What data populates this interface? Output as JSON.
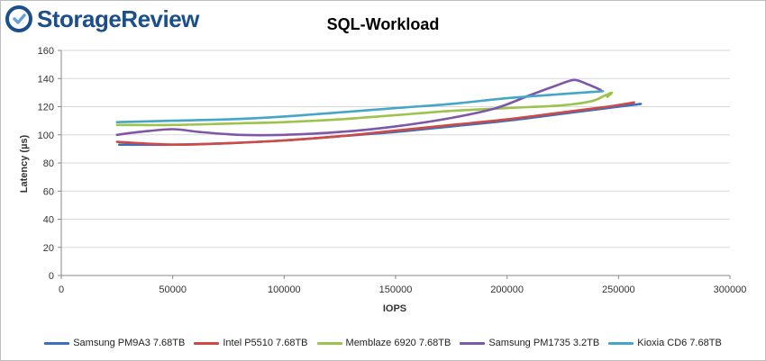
{
  "brand": {
    "name": "StorageReview",
    "logo_color": "#1a4f8b"
  },
  "chart_data": {
    "type": "line",
    "title": "SQL-Workload",
    "xlabel": "IOPS",
    "ylabel": "Latency (µs)",
    "xlim": [
      0,
      300000
    ],
    "ylim": [
      0,
      160
    ],
    "xticks": [
      0,
      50000,
      100000,
      150000,
      200000,
      250000,
      300000
    ],
    "yticks": [
      0,
      20,
      40,
      60,
      80,
      100,
      120,
      140,
      160
    ],
    "grid": "horizontal",
    "legend_position": "bottom",
    "series": [
      {
        "name": "Samsung PM9A3 7.68TB",
        "color": "#3d6ec0",
        "x": [
          26000,
          50000,
          75000,
          100000,
          125000,
          150000,
          175000,
          200000,
          225000,
          245000,
          260000
        ],
        "y": [
          93,
          93,
          94,
          96,
          99,
          102,
          106,
          110,
          115,
          119,
          122
        ]
      },
      {
        "name": "Intel P5510 7.68TB",
        "color": "#d04a45",
        "x": [
          25000,
          50000,
          75000,
          100000,
          125000,
          150000,
          175000,
          200000,
          225000,
          245000,
          257000
        ],
        "y": [
          95,
          93,
          94,
          96,
          99,
          103,
          107,
          111,
          116,
          120,
          123
        ]
      },
      {
        "name": "Memblaze 6920 7.68TB",
        "color": "#9cc34c",
        "x": [
          25000,
          50000,
          75000,
          100000,
          125000,
          150000,
          175000,
          200000,
          225000,
          238000,
          244000,
          247000,
          245000
        ],
        "y": [
          107,
          107,
          108,
          109,
          111,
          114,
          117,
          119,
          121,
          124,
          128,
          130,
          127
        ]
      },
      {
        "name": "Samsung PM1735 3.2TB",
        "color": "#7e57a8",
        "x": [
          25000,
          35000,
          50000,
          62000,
          80000,
          100000,
          125000,
          150000,
          175000,
          195000,
          210000,
          222000,
          230000,
          236000,
          242000
        ],
        "y": [
          100,
          102,
          104,
          102,
          100,
          100,
          102,
          106,
          112,
          119,
          128,
          135,
          139,
          136,
          132
        ]
      },
      {
        "name": "Kioxia CD6 7.68TB",
        "color": "#45a6c8",
        "x": [
          25000,
          50000,
          75000,
          100000,
          125000,
          150000,
          175000,
          200000,
          225000,
          243000
        ],
        "y": [
          109,
          110,
          111,
          113,
          116,
          119,
          122,
          126,
          129,
          131
        ]
      }
    ]
  }
}
